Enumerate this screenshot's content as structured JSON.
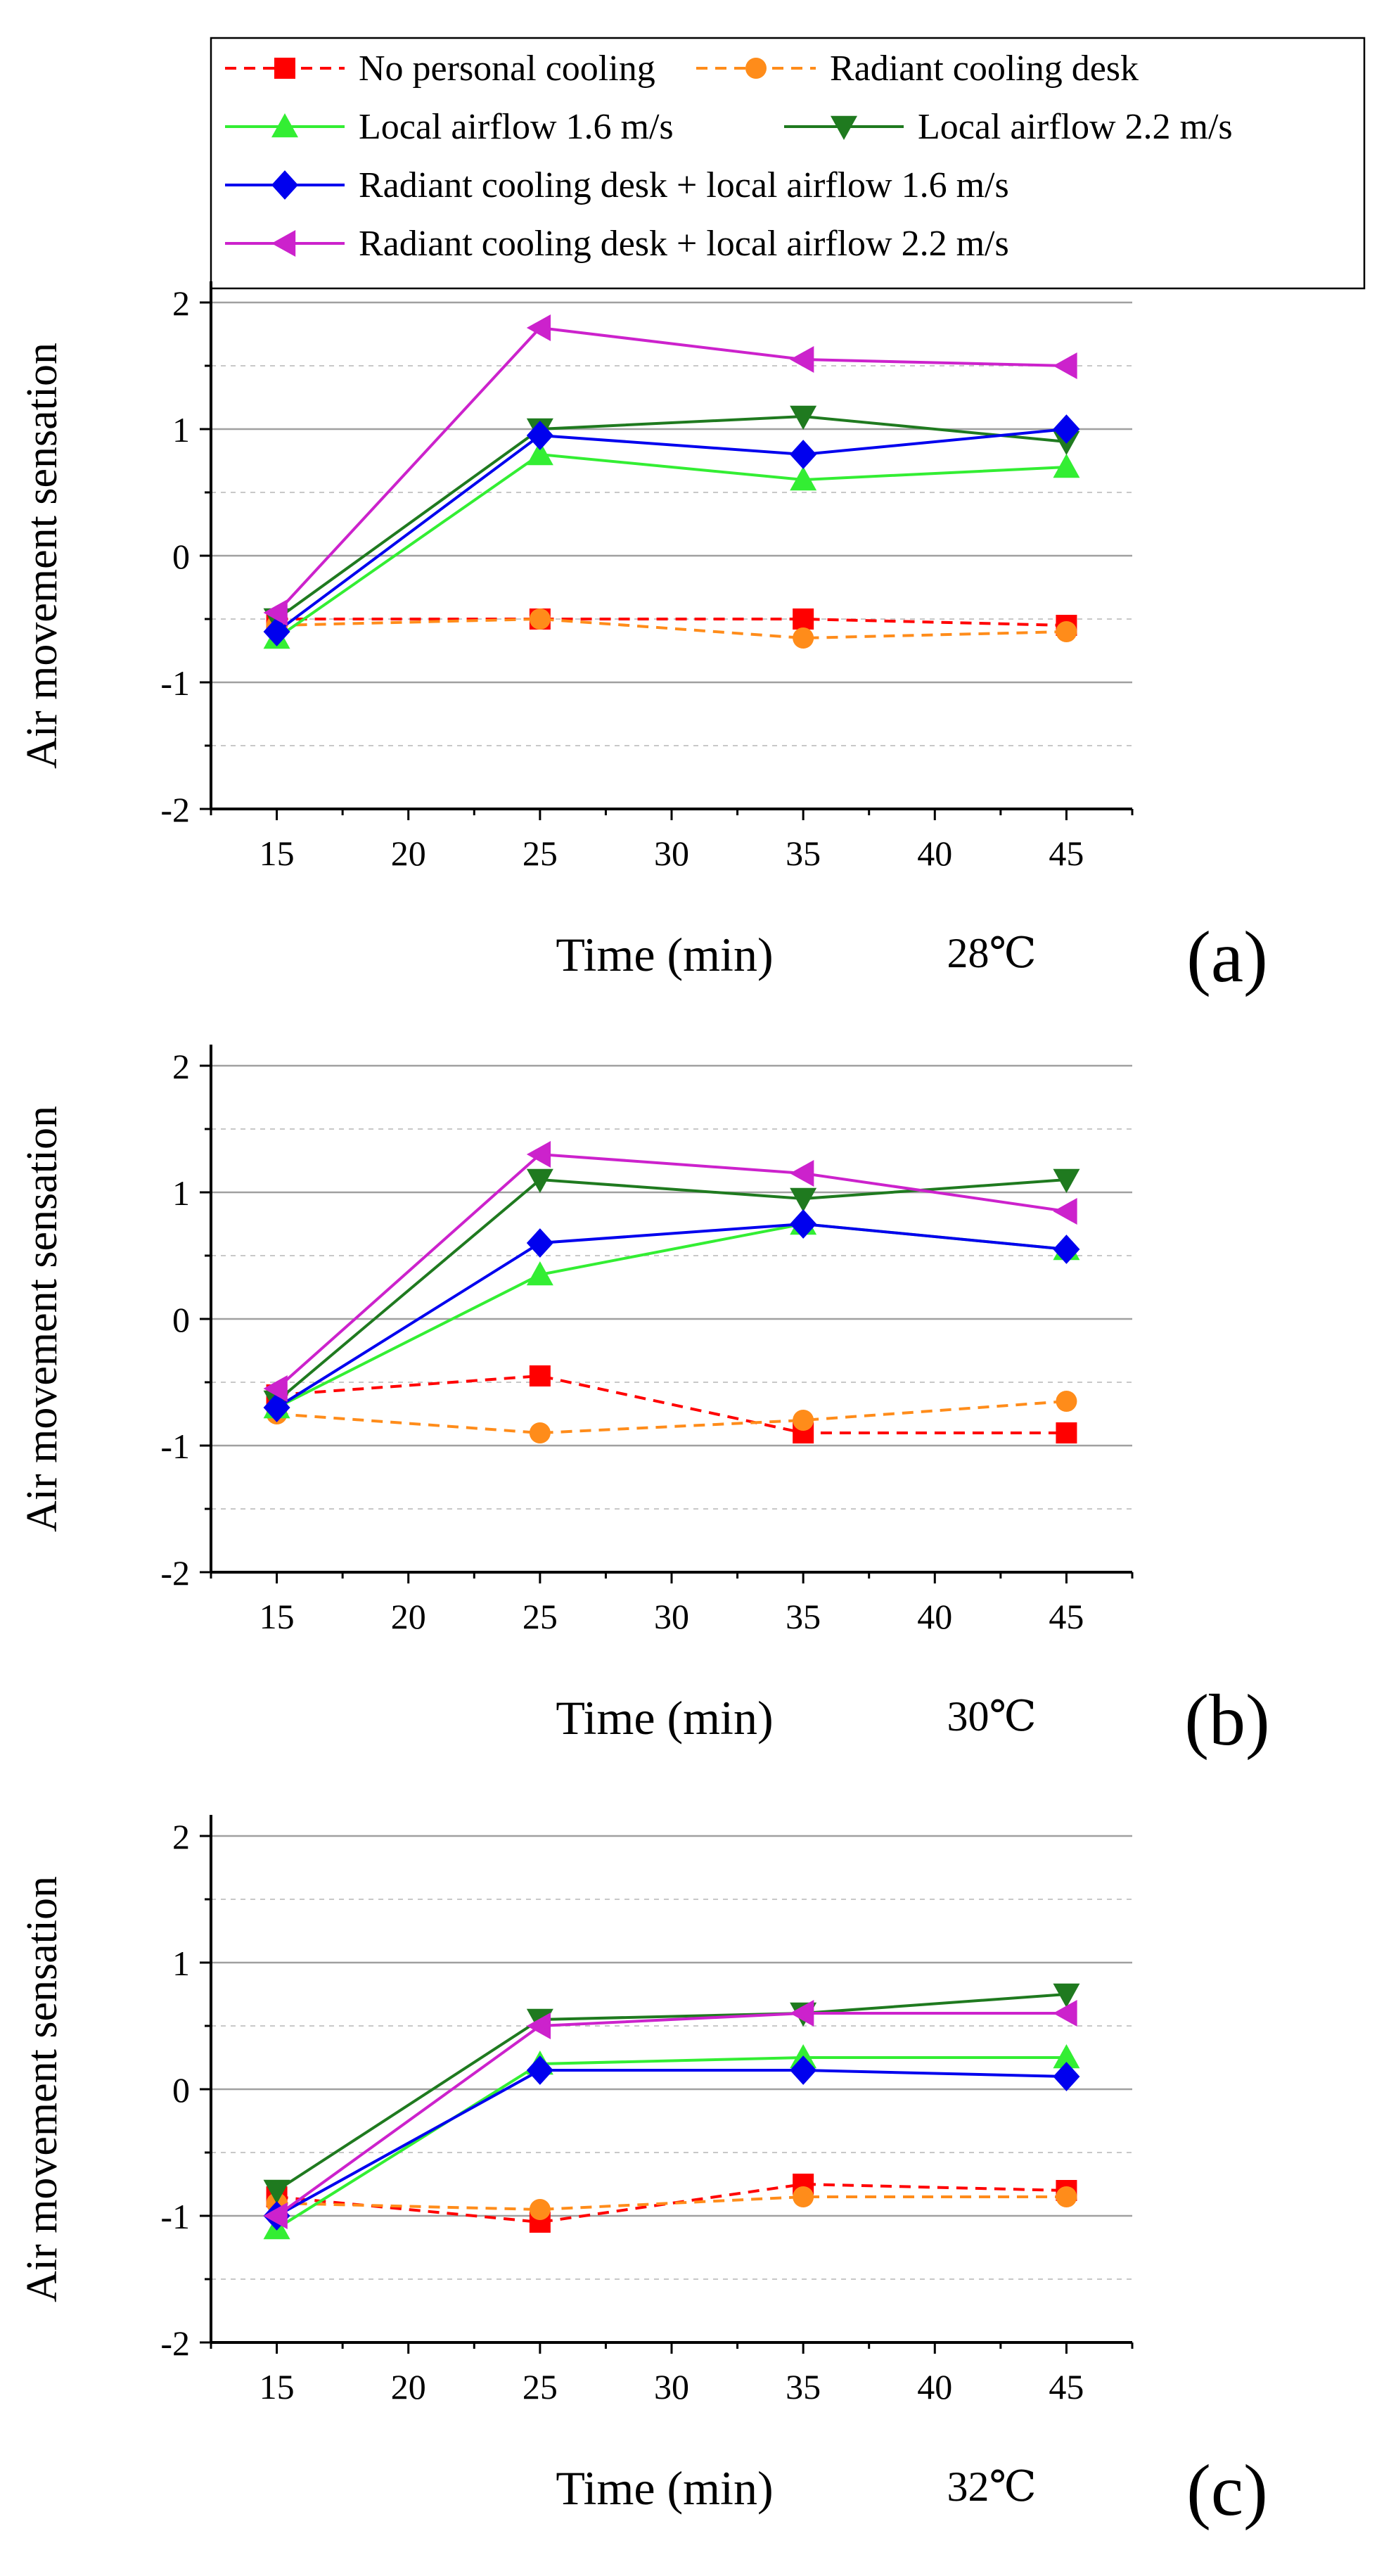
{
  "legend": {
    "entries": [
      {
        "label": "No personal cooling",
        "color": "#ff0000",
        "marker": "square",
        "dash": true
      },
      {
        "label": "Radiant cooling desk",
        "color": "#ff8c1a",
        "marker": "circle",
        "dash": true
      },
      {
        "label": "Local airflow 1.6 m/s",
        "color": "#33ee33",
        "marker": "triangle-up",
        "dash": false
      },
      {
        "label": "Local airflow 2.2 m/s",
        "color": "#1f7a1f",
        "marker": "triangle-down",
        "dash": false
      },
      {
        "label": "Radiant cooling desk + local airflow 1.6 m/s",
        "color": "#0000ee",
        "marker": "diamond",
        "dash": false
      },
      {
        "label": "Radiant cooling desk + local airflow 2.2 m/s",
        "color": "#cc22cc",
        "marker": "triangle-left",
        "dash": false
      }
    ]
  },
  "chart_data": [
    {
      "type": "line",
      "panel": "(a)",
      "temperature": "28℃",
      "xlabel": "Time (min)",
      "ylabel": "Air movement sensation",
      "x": [
        15,
        25,
        35,
        45
      ],
      "xticks": [
        15,
        20,
        25,
        30,
        35,
        40,
        45
      ],
      "xlim": [
        12.5,
        47.5
      ],
      "ylim": [
        -2,
        2
      ],
      "yticks": [
        -2,
        -1,
        0,
        1,
        2
      ],
      "series": [
        {
          "name": "No personal cooling",
          "values": [
            -0.5,
            -0.5,
            -0.5,
            -0.55
          ]
        },
        {
          "name": "Radiant cooling desk",
          "values": [
            -0.55,
            -0.5,
            -0.65,
            -0.6
          ]
        },
        {
          "name": "Local airflow 1.6 m/s",
          "values": [
            -0.65,
            0.8,
            0.6,
            0.7
          ]
        },
        {
          "name": "Local airflow 2.2 m/s",
          "values": [
            -0.5,
            1.0,
            1.1,
            0.9
          ]
        },
        {
          "name": "Radiant cooling desk + local airflow 1.6 m/s",
          "values": [
            -0.6,
            0.95,
            0.8,
            1.0
          ]
        },
        {
          "name": "Radiant cooling desk + local airflow 2.2 m/s",
          "values": [
            -0.45,
            1.8,
            1.55,
            1.5
          ]
        }
      ]
    },
    {
      "type": "line",
      "panel": "(b)",
      "temperature": "30℃",
      "xlabel": "Time (min)",
      "ylabel": "Air movement sensation",
      "x": [
        15,
        25,
        35,
        45
      ],
      "xticks": [
        15,
        20,
        25,
        30,
        35,
        40,
        45
      ],
      "xlim": [
        12.5,
        47.5
      ],
      "ylim": [
        -2,
        2
      ],
      "yticks": [
        -2,
        -1,
        0,
        1,
        2
      ],
      "series": [
        {
          "name": "No personal cooling",
          "values": [
            -0.6,
            -0.45,
            -0.9,
            -0.9
          ]
        },
        {
          "name": "Radiant cooling desk",
          "values": [
            -0.75,
            -0.9,
            -0.8,
            -0.65
          ]
        },
        {
          "name": "Local airflow 1.6 m/s",
          "values": [
            -0.7,
            0.35,
            0.75,
            0.55
          ]
        },
        {
          "name": "Local airflow 2.2 m/s",
          "values": [
            -0.65,
            1.1,
            0.95,
            1.1
          ]
        },
        {
          "name": "Radiant cooling desk + local airflow 1.6 m/s",
          "values": [
            -0.7,
            0.6,
            0.75,
            0.55
          ]
        },
        {
          "name": "Radiant cooling desk + local airflow 2.2 m/s",
          "values": [
            -0.55,
            1.3,
            1.15,
            0.85
          ]
        }
      ]
    },
    {
      "type": "line",
      "panel": "(c)",
      "temperature": "32℃",
      "xlabel": "Time (min)",
      "ylabel": "Air movement sensation",
      "x": [
        15,
        25,
        35,
        45
      ],
      "xticks": [
        15,
        20,
        25,
        30,
        35,
        40,
        45
      ],
      "xlim": [
        12.5,
        47.5
      ],
      "ylim": [
        -2,
        2
      ],
      "yticks": [
        -2,
        -1,
        0,
        1,
        2
      ],
      "series": [
        {
          "name": "No personal cooling",
          "values": [
            -0.85,
            -1.05,
            -0.75,
            -0.8
          ]
        },
        {
          "name": "Radiant cooling desk",
          "values": [
            -0.9,
            -0.95,
            -0.85,
            -0.85
          ]
        },
        {
          "name": "Local airflow 1.6 m/s",
          "values": [
            -1.1,
            0.2,
            0.25,
            0.25
          ]
        },
        {
          "name": "Local airflow 2.2 m/s",
          "values": [
            -0.8,
            0.55,
            0.6,
            0.75
          ]
        },
        {
          "name": "Radiant cooling desk + local airflow 1.6 m/s",
          "values": [
            -1.0,
            0.15,
            0.15,
            0.1
          ]
        },
        {
          "name": "Radiant cooling desk + local airflow 2.2 m/s",
          "values": [
            -1.0,
            0.5,
            0.6,
            0.6
          ]
        }
      ]
    }
  ]
}
